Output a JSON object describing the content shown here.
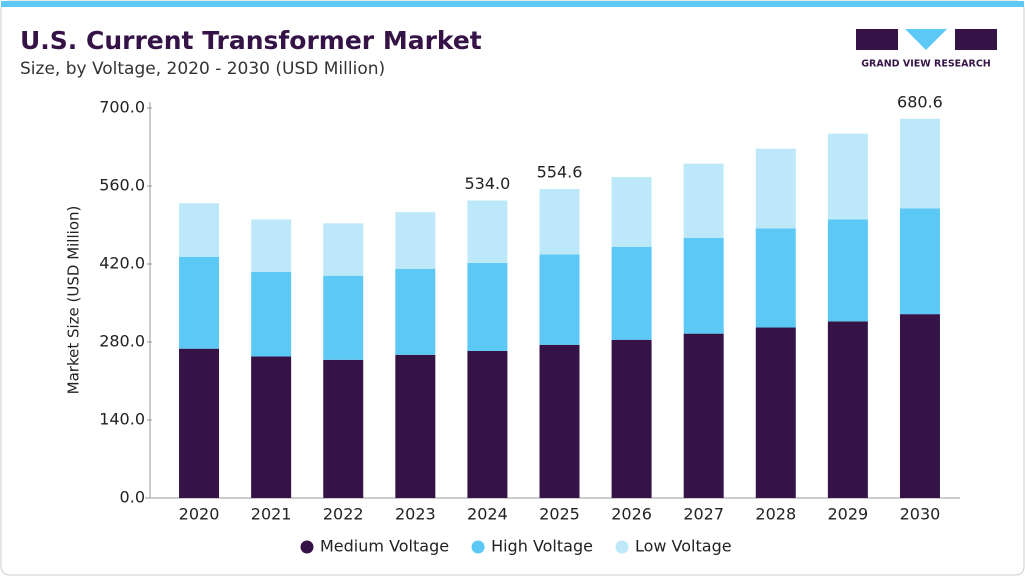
{
  "chart_data": {
    "type": "stacked_bar",
    "title": "U.S. Current Transformer Market",
    "subtitle": "Size, by Voltage, 2020 - 2030 (USD Million)",
    "y_label": "Market Size (USD Million)",
    "logo_text": "GRAND VIEW RESEARCH",
    "categories": [
      "2020",
      "2021",
      "2022",
      "2023",
      "2024",
      "2025",
      "2026",
      "2027",
      "2028",
      "2029",
      "2030"
    ],
    "series": [
      {
        "name": "Medium Voltage",
        "color": "#361347",
        "values": [
          268,
          254,
          248,
          257,
          264,
          275,
          284,
          295,
          306,
          317,
          330
        ]
      },
      {
        "name": "High Voltage",
        "color": "#5bc8f5",
        "values": [
          165,
          152,
          151,
          154,
          158,
          162,
          167,
          172,
          178,
          183,
          190
        ]
      },
      {
        "name": "Low Voltage",
        "color": "#bde8fa",
        "values": [
          96,
          94,
          94,
          102,
          112,
          117.6,
          125,
          133,
          143,
          154,
          160.6
        ]
      }
    ],
    "total_labels": [
      {
        "category": "2024",
        "value": 534,
        "label": "534.0"
      },
      {
        "category": "2025",
        "value": 554.6,
        "label": "554.6"
      },
      {
        "category": "2030",
        "value": 680.6,
        "label": "680.6"
      }
    ],
    "ylim": [
      0,
      700
    ],
    "yticks": [
      {
        "value": 0,
        "label": "0.0"
      },
      {
        "value": 140,
        "label": "140.0"
      },
      {
        "value": 280,
        "label": "280.0"
      },
      {
        "value": 420,
        "label": "420.0"
      },
      {
        "value": 560,
        "label": "560.0"
      },
      {
        "value": 700,
        "label": "700.0"
      }
    ],
    "legend": "bottom"
  }
}
